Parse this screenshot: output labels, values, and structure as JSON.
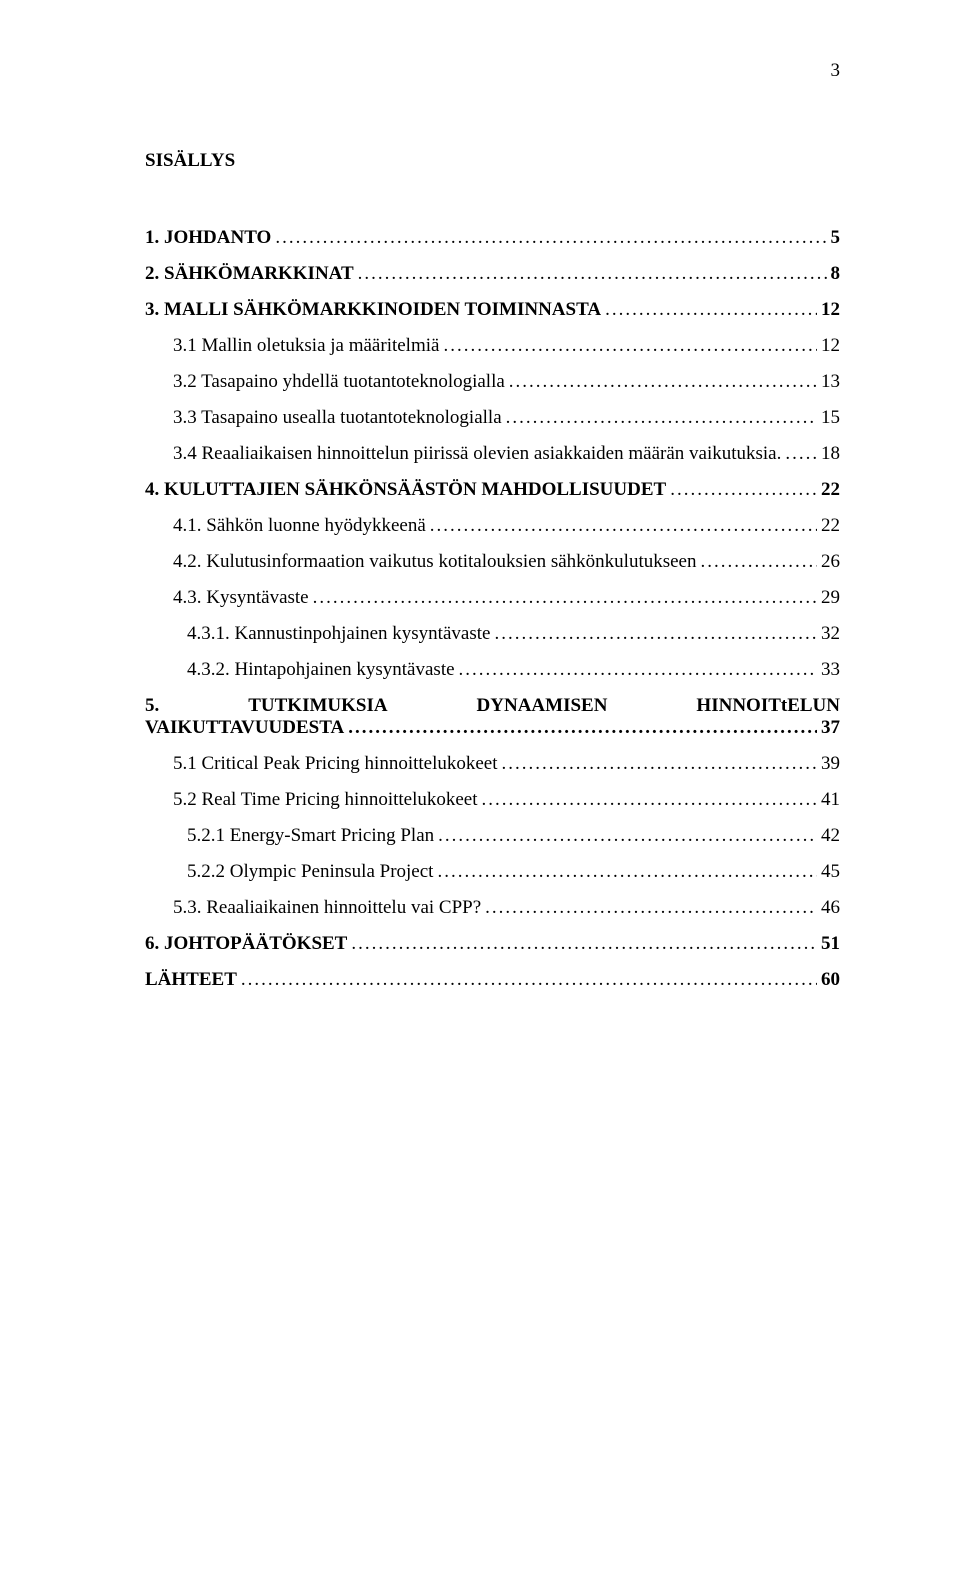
{
  "page_number": "3",
  "heading": "SISÄLLYS",
  "entries": [
    {
      "label": "1.   JOHDANTO",
      "page": "5",
      "bold": true,
      "indent": 0,
      "gap": false
    },
    {
      "label": "2.   SÄHKÖMARKKINAT",
      "page": "8",
      "bold": true,
      "indent": 0,
      "gap": true
    },
    {
      "label": "3.   MALLI SÄHKÖMARKKINOIDEN TOIMINNASTA",
      "page": "12",
      "bold": true,
      "indent": 0,
      "gap": true
    },
    {
      "label": "3.1 Mallin oletuksia ja määritelmiä",
      "page": "12",
      "bold": false,
      "indent": 1,
      "gap": true
    },
    {
      "label": "3.2 Tasapaino yhdellä tuotantoteknologialla",
      "page": "13",
      "bold": false,
      "indent": 1,
      "gap": true
    },
    {
      "label": "3.3 Tasapaino usealla tuotantoteknologialla",
      "page": "15",
      "bold": false,
      "indent": 1,
      "gap": true
    },
    {
      "label": "3.4 Reaaliaikaisen hinnoittelun piirissä olevien asiakkaiden määrän vaikutuksia.",
      "page": "18",
      "bold": false,
      "indent": 1,
      "gap": true
    },
    {
      "label": "4.   KULUTTAJIEN SÄHKÖNSÄÄSTÖN MAHDOLLISUUDET",
      "page": "22",
      "bold": true,
      "indent": 0,
      "gap": true
    },
    {
      "label": "4.1. Sähkön luonne hyödykkeenä",
      "page": "22",
      "bold": false,
      "indent": 1,
      "gap": true
    },
    {
      "label": "4.2. Kulutusinformaation vaikutus kotitalouksien sähkönkulutukseen",
      "page": "26",
      "bold": false,
      "indent": 1,
      "gap": true
    },
    {
      "label": "4.3. Kysyntävaste",
      "page": "29",
      "bold": false,
      "indent": 1,
      "gap": true
    },
    {
      "label": "4.3.1. Kannustinpohjainen kysyntävaste",
      "page": "32",
      "bold": false,
      "indent": 2,
      "gap": true
    },
    {
      "label": "4.3.2. Hintapohjainen kysyntävaste",
      "page": "33",
      "bold": false,
      "indent": 2,
      "gap": true
    }
  ],
  "section5": {
    "top_left": "5.",
    "top_mid": "TUTKIMUKSIA",
    "top_mid2": "DYNAAMISEN",
    "top_right": "HINNOITtELUN",
    "bottom_label": "VAIKUTTAVUUDESTA",
    "bottom_page": "37"
  },
  "entries2": [
    {
      "label": "5.1 Critical Peak Pricing hinnoittelukokeet",
      "page": "39",
      "bold": false,
      "indent": 1,
      "gap": true
    },
    {
      "label": "5.2 Real Time Pricing hinnoittelukokeet",
      "page": "41",
      "bold": false,
      "indent": 1,
      "gap": true
    },
    {
      "label": "5.2.1 Energy-Smart Pricing Plan",
      "page": "42",
      "bold": false,
      "indent": 2,
      "gap": true
    },
    {
      "label": "5.2.2 Olympic Peninsula Project",
      "page": "45",
      "bold": false,
      "indent": 2,
      "gap": true
    },
    {
      "label": "5.3. Reaaliaikainen hinnoittelu vai CPP?",
      "page": "46",
      "bold": false,
      "indent": 1,
      "gap": true
    },
    {
      "label": "6. JOHTOPÄÄTÖKSET",
      "page": "51",
      "bold": true,
      "indent": 0,
      "gap": true
    },
    {
      "label": "LÄHTEET",
      "page": "60",
      "bold": true,
      "indent": 0,
      "gap": true
    }
  ]
}
